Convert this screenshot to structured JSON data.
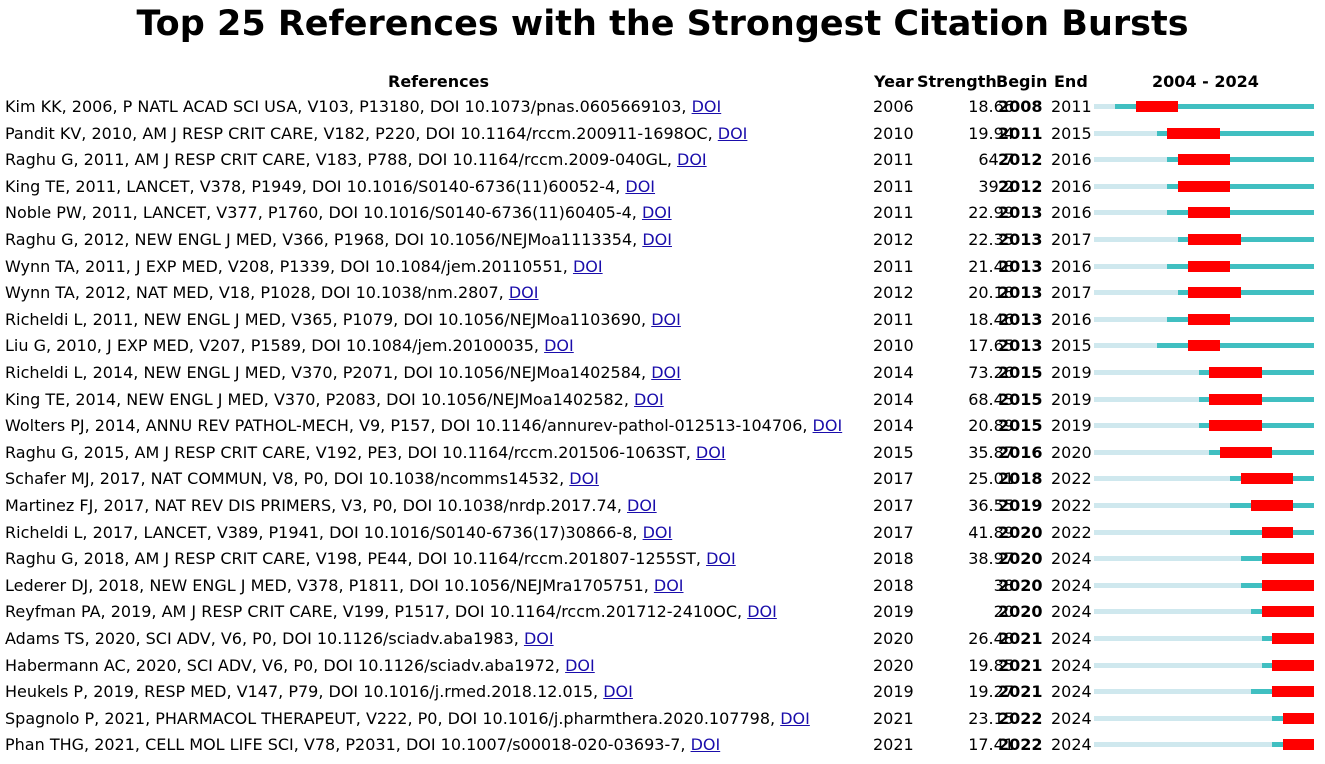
{
  "chart_data": {
    "type": "table",
    "title": "Top 25 References with the Strongest Citation Bursts",
    "headers": {
      "references": "References",
      "year": "Year",
      "strength": "Strength",
      "begin": "Begin",
      "end": "End",
      "range": "2004 - 2024"
    },
    "range_start": 2004,
    "range_end": 2024,
    "colors": {
      "before": "#cfe8ee",
      "active": "#40bfc1",
      "burst": "#ff0000"
    },
    "rows": [
      {
        "reference": "Kim KK, 2006, P NATL ACAD SCI USA, V103, P13180, DOI 10.1073/pnas.0605669103, ",
        "doi": "DOI",
        "year": 2006,
        "strength": 18.66,
        "begin": 2008,
        "end": 2011
      },
      {
        "reference": "Pandit KV, 2010, AM J RESP CRIT CARE, V182, P220, DOI 10.1164/rccm.200911-1698OC, ",
        "doi": "DOI",
        "year": 2010,
        "strength": 19.94,
        "begin": 2011,
        "end": 2015
      },
      {
        "reference": "Raghu G, 2011, AM J RESP CRIT CARE, V183, P788, DOI 10.1164/rccm.2009-040GL, ",
        "doi": "DOI",
        "year": 2011,
        "strength": 64.7,
        "begin": 2012,
        "end": 2016
      },
      {
        "reference": "King TE, 2011, LANCET, V378, P1949, DOI 10.1016/S0140-6736(11)60052-4, ",
        "doi": "DOI",
        "year": 2011,
        "strength": 39.2,
        "begin": 2012,
        "end": 2016
      },
      {
        "reference": "Noble PW, 2011, LANCET, V377, P1760, DOI 10.1016/S0140-6736(11)60405-4, ",
        "doi": "DOI",
        "year": 2011,
        "strength": 22.99,
        "begin": 2013,
        "end": 2016
      },
      {
        "reference": "Raghu G, 2012, NEW ENGL J MED, V366, P1968, DOI 10.1056/NEJMoa1113354, ",
        "doi": "DOI",
        "year": 2012,
        "strength": 22.35,
        "begin": 2013,
        "end": 2017
      },
      {
        "reference": "Wynn TA, 2011, J EXP MED, V208, P1339, DOI 10.1084/jem.20110551, ",
        "doi": "DOI",
        "year": 2011,
        "strength": 21.48,
        "begin": 2013,
        "end": 2016
      },
      {
        "reference": "Wynn TA, 2012, NAT MED, V18, P1028, DOI 10.1038/nm.2807, ",
        "doi": "DOI",
        "year": 2012,
        "strength": 20.18,
        "begin": 2013,
        "end": 2017
      },
      {
        "reference": "Richeldi L, 2011, NEW ENGL J MED, V365, P1079, DOI 10.1056/NEJMoa1103690, ",
        "doi": "DOI",
        "year": 2011,
        "strength": 18.46,
        "begin": 2013,
        "end": 2016
      },
      {
        "reference": "Liu G, 2010, J EXP MED, V207, P1589, DOI 10.1084/jem.20100035, ",
        "doi": "DOI",
        "year": 2010,
        "strength": 17.65,
        "begin": 2013,
        "end": 2015
      },
      {
        "reference": "Richeldi L, 2014, NEW ENGL J MED, V370, P2071, DOI 10.1056/NEJMoa1402584, ",
        "doi": "DOI",
        "year": 2014,
        "strength": 73.26,
        "begin": 2015,
        "end": 2019
      },
      {
        "reference": "King TE, 2014, NEW ENGL J MED, V370, P2083, DOI 10.1056/NEJMoa1402582, ",
        "doi": "DOI",
        "year": 2014,
        "strength": 68.43,
        "begin": 2015,
        "end": 2019
      },
      {
        "reference": "Wolters PJ, 2014, ANNU REV PATHOL-MECH, V9, P157, DOI 10.1146/annurev-pathol-012513-104706, ",
        "doi": "DOI",
        "year": 2014,
        "strength": 20.89,
        "begin": 2015,
        "end": 2019
      },
      {
        "reference": "Raghu G, 2015, AM J RESP CRIT CARE, V192, PE3, DOI 10.1164/rccm.201506-1063ST, ",
        "doi": "DOI",
        "year": 2015,
        "strength": 35.87,
        "begin": 2016,
        "end": 2020
      },
      {
        "reference": "Schafer MJ, 2017, NAT COMMUN, V8, P0, DOI 10.1038/ncomms14532, ",
        "doi": "DOI",
        "year": 2017,
        "strength": 25.01,
        "begin": 2018,
        "end": 2022
      },
      {
        "reference": "Martinez FJ, 2017, NAT REV DIS PRIMERS, V3, P0, DOI 10.1038/nrdp.2017.74, ",
        "doi": "DOI",
        "year": 2017,
        "strength": 36.55,
        "begin": 2019,
        "end": 2022
      },
      {
        "reference": "Richeldi L, 2017, LANCET, V389, P1941, DOI 10.1016/S0140-6736(17)30866-8, ",
        "doi": "DOI",
        "year": 2017,
        "strength": 41.89,
        "begin": 2020,
        "end": 2022
      },
      {
        "reference": "Raghu G, 2018, AM J RESP CRIT CARE, V198, PE44, DOI 10.1164/rccm.201807-1255ST, ",
        "doi": "DOI",
        "year": 2018,
        "strength": 38.97,
        "begin": 2020,
        "end": 2024
      },
      {
        "reference": "Lederer DJ, 2018, NEW ENGL J MED, V378, P1811, DOI 10.1056/NEJMra1705751, ",
        "doi": "DOI",
        "year": 2018,
        "strength": 38,
        "begin": 2020,
        "end": 2024
      },
      {
        "reference": "Reyfman PA, 2019, AM J RESP CRIT CARE, V199, P1517, DOI 10.1164/rccm.201712-2410OC, ",
        "doi": "DOI",
        "year": 2019,
        "strength": 20,
        "begin": 2020,
        "end": 2024
      },
      {
        "reference": "Adams TS, 2020, SCI ADV, V6, P0, DOI 10.1126/sciadv.aba1983, ",
        "doi": "DOI",
        "year": 2020,
        "strength": 26.48,
        "begin": 2021,
        "end": 2024
      },
      {
        "reference": "Habermann AC, 2020, SCI ADV, V6, P0, DOI 10.1126/sciadv.aba1972, ",
        "doi": "DOI",
        "year": 2020,
        "strength": 19.85,
        "begin": 2021,
        "end": 2024
      },
      {
        "reference": "Heukels P, 2019, RESP MED, V147, P79, DOI 10.1016/j.rmed.2018.12.015, ",
        "doi": "DOI",
        "year": 2019,
        "strength": 19.27,
        "begin": 2021,
        "end": 2024
      },
      {
        "reference": "Spagnolo P, 2021, PHARMACOL THERAPEUT, V222, P0, DOI 10.1016/j.pharmthera.2020.107798, ",
        "doi": "DOI",
        "year": 2021,
        "strength": 23.15,
        "begin": 2022,
        "end": 2024
      },
      {
        "reference": "Phan THG, 2021, CELL MOL LIFE SCI, V78, P2031, DOI 10.1007/s00018-020-03693-7, ",
        "doi": "DOI",
        "year": 2021,
        "strength": 17.41,
        "begin": 2022,
        "end": 2024
      }
    ]
  }
}
